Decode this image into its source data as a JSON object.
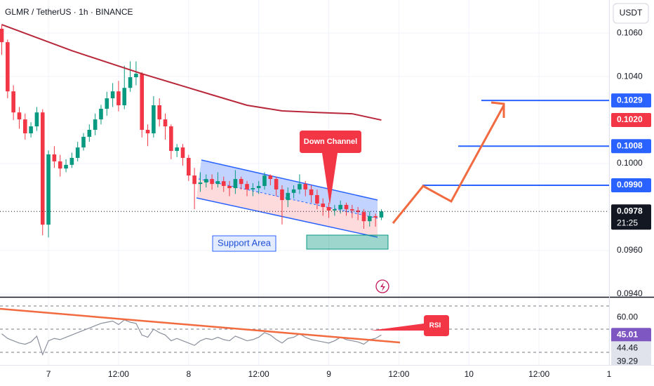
{
  "chart_data": [
    {
      "type": "candlestick",
      "title": "GLMR / TetherUS · 1h · BINANCE",
      "y_axis_label": "USDT",
      "x": [
        -8,
        -7,
        -6,
        -5,
        -4,
        -3,
        -2,
        -1,
        0,
        1,
        2,
        3,
        4,
        5,
        6,
        7,
        8,
        9,
        10,
        11,
        12,
        13,
        14,
        15,
        16,
        17,
        18,
        19,
        20,
        21,
        22,
        23,
        24,
        25,
        26,
        27,
        28,
        29,
        30,
        31,
        32,
        33,
        34,
        35,
        36,
        37,
        38,
        39,
        40,
        41,
        42,
        43,
        44,
        45,
        46,
        47,
        48,
        49,
        50,
        51,
        52,
        53,
        54,
        55,
        56,
        57
      ],
      "open": [
        0.1062,
        0.10558,
        0.10332,
        0.10235,
        0.10203,
        0.10139,
        0.10171,
        0.10235,
        0.09719,
        0.10042,
        0.1001,
        0.09977,
        0.09994,
        0.10026,
        0.10074,
        0.10123,
        0.10155,
        0.10203,
        0.10252,
        0.103,
        0.10332,
        0.10268,
        0.10348,
        0.10397,
        0.10413,
        0.10155,
        0.10139,
        0.10268,
        0.10203,
        0.10171,
        0.10058,
        0.10074,
        0.10026,
        0.09945,
        0.09906,
        0.09913,
        0.09929,
        0.09906,
        0.09919,
        0.09897,
        0.09887,
        0.09929,
        0.09906,
        0.09881,
        0.09887,
        0.09897,
        0.09945,
        0.09929,
        0.09881,
        0.09832,
        0.09865,
        0.09881,
        0.09906,
        0.09881,
        0.09855,
        0.09816,
        0.098,
        0.09784,
        0.0979,
        0.0981,
        0.0979,
        0.09784,
        0.09777,
        0.09735,
        0.09758,
        0.09752
      ],
      "high": [
        0.1064,
        0.1057,
        0.1036,
        0.1026,
        0.1023,
        0.1019,
        0.1026,
        0.1025,
        0.1006,
        0.1008,
        0.1004,
        0.1002,
        0.1005,
        0.101,
        0.1014,
        0.1018,
        0.1023,
        0.1027,
        0.1033,
        0.1037,
        0.1038,
        0.1045,
        0.1047,
        0.1047,
        0.1042,
        0.1018,
        0.1031,
        0.103,
        0.1023,
        0.1018,
        0.1009,
        0.1009,
        0.1004,
        0.0998,
        0.0996,
        0.0995,
        0.0995,
        0.0996,
        0.0994,
        0.0992,
        0.0997,
        0.0994,
        0.0992,
        0.0991,
        0.0992,
        0.0996,
        0.0995,
        0.0994,
        0.099,
        0.0989,
        0.099,
        0.0995,
        0.0992,
        0.099,
        0.0988,
        0.0984,
        0.0982,
        0.0981,
        0.0983,
        0.0982,
        0.0981,
        0.098,
        0.0979,
        0.0978,
        0.0977,
        0.0979
      ],
      "low": [
        0.105,
        0.103,
        0.102,
        0.1016,
        0.1011,
        0.1012,
        0.1015,
        0.0967,
        0.0966,
        0.0998,
        0.0994,
        0.0996,
        0.0998,
        0.1001,
        0.1006,
        0.101,
        0.1013,
        0.1018,
        0.1022,
        0.1026,
        0.1024,
        0.1025,
        0.1033,
        0.1036,
        0.1012,
        0.1008,
        0.1012,
        0.1017,
        0.1011,
        0.1002,
        0.1003,
        0.0999,
        0.0992,
        0.0979,
        0.0987,
        0.0989,
        0.0988,
        0.0989,
        0.0987,
        0.0985,
        0.0986,
        0.0988,
        0.0985,
        0.0985,
        0.0986,
        0.0988,
        0.099,
        0.0985,
        0.0972,
        0.098,
        0.0984,
        0.0986,
        0.0985,
        0.0982,
        0.0979,
        0.0976,
        0.0975,
        0.0976,
        0.0977,
        0.0976,
        0.0975,
        0.0974,
        0.097,
        0.0971,
        0.0971,
        0.0974
      ],
      "close": [
        0.10558,
        0.10332,
        0.10235,
        0.10203,
        0.10139,
        0.10171,
        0.10235,
        0.09719,
        0.10042,
        0.1001,
        0.09977,
        0.09994,
        0.10026,
        0.10074,
        0.10123,
        0.10155,
        0.10203,
        0.10252,
        0.103,
        0.10332,
        0.10268,
        0.10348,
        0.10397,
        0.10413,
        0.10155,
        0.10139,
        0.10268,
        0.10203,
        0.10171,
        0.10058,
        0.10074,
        0.10026,
        0.09945,
        0.09906,
        0.09913,
        0.09929,
        0.09906,
        0.09919,
        0.09897,
        0.09887,
        0.09929,
        0.09906,
        0.09881,
        0.09887,
        0.09897,
        0.09945,
        0.09929,
        0.09881,
        0.09832,
        0.09865,
        0.09881,
        0.09906,
        0.09881,
        0.09855,
        0.09816,
        0.098,
        0.09784,
        0.0979,
        0.0981,
        0.0979,
        0.09784,
        0.09777,
        0.09735,
        0.09758,
        0.09752,
        0.0978
      ],
      "up_color": "#089981",
      "down_color": "#f23645",
      "ylim": [
        0.09387,
        0.10752
      ],
      "xlim": [
        -8.3,
        96
      ],
      "yticks": [
        {
          "value": 0.106,
          "label": "0.1060"
        },
        {
          "value": 0.104,
          "label": "0.1040"
        },
        {
          "value": 0.1,
          "label": "0.1000"
        },
        {
          "value": 0.096,
          "label": "0.0960"
        },
        {
          "value": 0.094,
          "label": "0.0940"
        }
      ],
      "xticks": [
        {
          "value": 0,
          "label": "7"
        },
        {
          "value": 12,
          "label": "12:00"
        },
        {
          "value": 24,
          "label": "8"
        },
        {
          "value": 36,
          "label": "12:00"
        },
        {
          "value": 48,
          "label": "9"
        },
        {
          "value": 60,
          "label": "12:00"
        },
        {
          "value": 72,
          "label": "10"
        },
        {
          "value": 84,
          "label": "12:00"
        },
        {
          "value": 96,
          "label": "1"
        }
      ],
      "grid": true,
      "ma": {
        "color": "#b8283a",
        "x": [
          -8,
          4,
          16,
          28,
          34,
          40,
          46,
          52,
          57
        ],
        "values": [
          0.10639,
          0.10519,
          0.10413,
          0.10316,
          0.10268,
          0.10242,
          0.10235,
          0.10229,
          0.102
        ],
        "last_label": {
          "value": 0.102,
          "label": "0.1020"
        }
      },
      "levels": [
        {
          "value": 0.1029,
          "label": "0.1029"
        },
        {
          "value": 0.1008,
          "label": "0.1008"
        },
        {
          "value": 0.099,
          "label": "0.0990"
        }
      ],
      "level_color": "#2962ff",
      "last_price": {
        "value": 0.0978,
        "label": "0.0978"
      },
      "countdown": "21:25",
      "annotations": [
        "Down Channel",
        "Support Area"
      ]
    },
    {
      "type": "line",
      "title": "RSI",
      "color": "#8a8f9c",
      "values": [
        46,
        42,
        40,
        38,
        37,
        39,
        44,
        28,
        40,
        42,
        41,
        43,
        45,
        47,
        49,
        51,
        53,
        55,
        56,
        57,
        54,
        58,
        56,
        55,
        45,
        43,
        50,
        47,
        45,
        40,
        42,
        40,
        38,
        36,
        40,
        42,
        41,
        43,
        41,
        40,
        44,
        42,
        40,
        41,
        43,
        47,
        45,
        41,
        38,
        42,
        43,
        46,
        43,
        41,
        40,
        39,
        38,
        40,
        43,
        41,
        40,
        39,
        37,
        41,
        42,
        45.01
      ],
      "ylim": [
        19.1,
        76.7
      ],
      "yticks": [
        {
          "value": 60,
          "label": "60.00"
        }
      ],
      "levels": [
        70,
        50,
        30
      ],
      "last_label": {
        "value": 45.01,
        "label": "45.01"
      },
      "band_labels": [
        {
          "value": 44.46,
          "label": "44.46"
        },
        {
          "value": 39.29,
          "label": "39.29"
        }
      ]
    }
  ]
}
